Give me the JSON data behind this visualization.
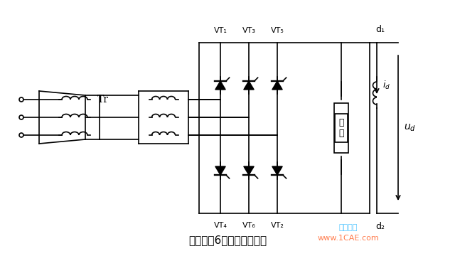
{
  "title": "三相全波6脉冲整流原理图",
  "title_fontsize": 11,
  "background_color": "#ffffff",
  "line_color": "#000000",
  "label_Tr": "Tr",
  "label_id": "$i_d$",
  "label_ud": "$u_d$",
  "label_load": "负\n载",
  "label_d1": "d₁",
  "label_d2": "d₂",
  "vt_labels_top": [
    "VT₁",
    "VT₃",
    "VT₅"
  ],
  "vt_labels_bot": [
    "VT₄",
    "VT₆",
    "VT₂"
  ],
  "watermark1": "仿真在线",
  "watermark2": "www.1CAE.com",
  "watermark_color1": "#00aaff",
  "watermark_color2": "#ff4400"
}
